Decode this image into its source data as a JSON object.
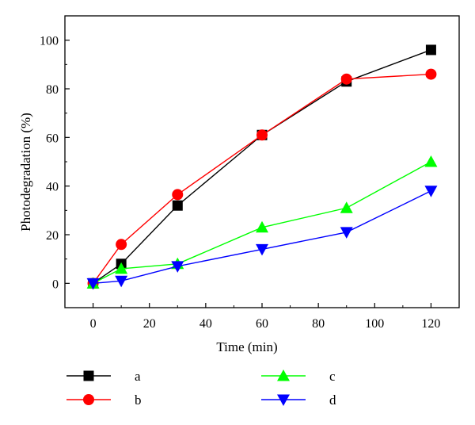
{
  "chart_data": {
    "type": "line",
    "xlabel": "Time (min)",
    "ylabel": "Photodegradation (%)",
    "xlim": [
      -10,
      130
    ],
    "ylim": [
      -10,
      110
    ],
    "xticks": [
      0,
      20,
      40,
      60,
      80,
      100,
      120
    ],
    "yticks": [
      0,
      20,
      40,
      60,
      80,
      100
    ],
    "grid": false,
    "legend_position": "bottom",
    "series": [
      {
        "name": "a",
        "color": "#000000",
        "marker": "square",
        "x": [
          0,
          10,
          30,
          60,
          90,
          120
        ],
        "y": [
          0,
          8,
          32,
          61,
          83,
          96
        ]
      },
      {
        "name": "b",
        "color": "#ff0000",
        "marker": "circle",
        "x": [
          0,
          10,
          30,
          60,
          90,
          120
        ],
        "y": [
          0,
          16,
          36.5,
          61,
          84,
          86
        ]
      },
      {
        "name": "c",
        "color": "#00ff00",
        "marker": "triangle-up",
        "x": [
          0,
          10,
          30,
          60,
          90,
          120
        ],
        "y": [
          0,
          6,
          8,
          23,
          31,
          50
        ]
      },
      {
        "name": "d",
        "color": "#0000ff",
        "marker": "triangle-down",
        "x": [
          0,
          10,
          30,
          60,
          90,
          120
        ],
        "y": [
          0,
          1,
          7,
          14,
          21,
          38
        ]
      }
    ]
  }
}
